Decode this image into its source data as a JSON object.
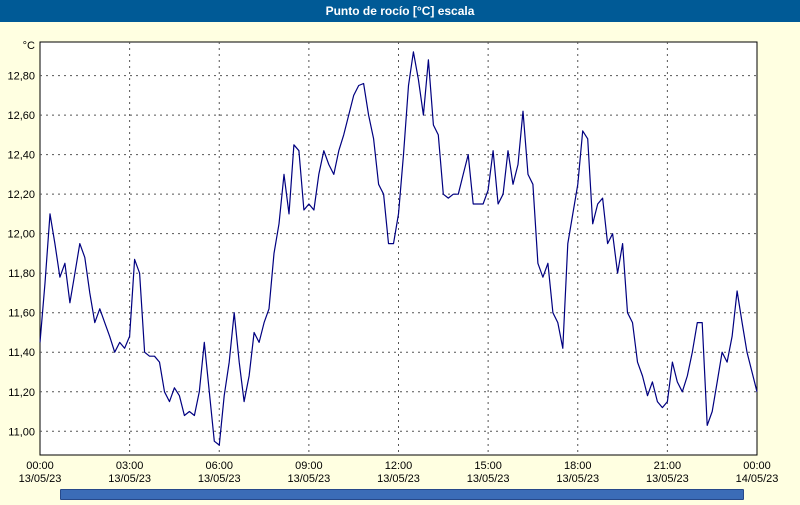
{
  "window": {
    "title": "Punto de rocío [°C] escala",
    "titlebar_color": "#005a96",
    "background_color": "#ffffe1"
  },
  "footer": {
    "scrollbar_color": "#3b6cb7"
  },
  "chart_data": {
    "type": "line",
    "title": "Punto de rocío [°C] escala",
    "unit_label": "°C",
    "line_color": "#000080",
    "grid": true,
    "grid_style": "dashed",
    "plot_background": "#ffffff",
    "ylim": [
      10.88,
      12.97
    ],
    "x_range_minutes": [
      0,
      1440
    ],
    "sample_interval_minutes": 10,
    "y_ticks": [
      {
        "value": 12.8,
        "label": "12,80"
      },
      {
        "value": 12.6,
        "label": "12,60"
      },
      {
        "value": 12.4,
        "label": "12,40"
      },
      {
        "value": 12.2,
        "label": "12,20"
      },
      {
        "value": 12.0,
        "label": "12,00"
      },
      {
        "value": 11.8,
        "label": "11,80"
      },
      {
        "value": 11.6,
        "label": "11,60"
      },
      {
        "value": 11.4,
        "label": "11,40"
      },
      {
        "value": 11.2,
        "label": "11,20"
      },
      {
        "value": 11.0,
        "label": "11,00"
      }
    ],
    "x_ticks": [
      {
        "minutes": 0,
        "time": "00:00",
        "date": "13/05/23"
      },
      {
        "minutes": 180,
        "time": "03:00",
        "date": "13/05/23"
      },
      {
        "minutes": 360,
        "time": "06:00",
        "date": "13/05/23"
      },
      {
        "minutes": 540,
        "time": "09:00",
        "date": "13/05/23"
      },
      {
        "minutes": 720,
        "time": "12:00",
        "date": "13/05/23"
      },
      {
        "minutes": 900,
        "time": "15:00",
        "date": "13/05/23"
      },
      {
        "minutes": 1080,
        "time": "18:00",
        "date": "13/05/23"
      },
      {
        "minutes": 1260,
        "time": "21:00",
        "date": "13/05/23"
      },
      {
        "minutes": 1440,
        "time": "00:00",
        "date": "14/05/23"
      }
    ],
    "values": [
      11.45,
      11.75,
      12.1,
      11.95,
      11.78,
      11.85,
      11.65,
      11.8,
      11.95,
      11.88,
      11.7,
      11.55,
      11.62,
      11.55,
      11.48,
      11.4,
      11.45,
      11.42,
      11.48,
      11.87,
      11.8,
      11.4,
      11.38,
      11.38,
      11.35,
      11.2,
      11.15,
      11.22,
      11.18,
      11.08,
      11.1,
      11.08,
      11.2,
      11.45,
      11.2,
      10.95,
      10.93,
      11.18,
      11.35,
      11.6,
      11.35,
      11.15,
      11.28,
      11.5,
      11.45,
      11.55,
      11.62,
      11.9,
      12.05,
      12.3,
      12.1,
      12.45,
      12.42,
      12.12,
      12.15,
      12.12,
      12.3,
      12.42,
      12.35,
      12.3,
      12.42,
      12.5,
      12.6,
      12.7,
      12.75,
      12.76,
      12.6,
      12.48,
      12.25,
      12.2,
      11.95,
      11.95,
      12.1,
      12.4,
      12.75,
      12.92,
      12.78,
      12.6,
      12.88,
      12.55,
      12.5,
      12.2,
      12.18,
      12.2,
      12.2,
      12.3,
      12.4,
      12.15,
      12.15,
      12.15,
      12.22,
      12.42,
      12.15,
      12.2,
      12.42,
      12.25,
      12.35,
      12.62,
      12.3,
      12.25,
      11.85,
      11.78,
      11.85,
      11.6,
      11.55,
      11.42,
      11.95,
      12.1,
      12.25,
      12.52,
      12.48,
      12.05,
      12.15,
      12.18,
      11.95,
      12.0,
      11.8,
      11.95,
      11.6,
      11.55,
      11.35,
      11.28,
      11.18,
      11.25,
      11.15,
      11.12,
      11.15,
      11.35,
      11.25,
      11.2,
      11.28,
      11.4,
      11.55,
      11.55,
      11.03,
      11.1,
      11.25,
      11.4,
      11.35,
      11.48,
      11.71,
      11.55,
      11.4,
      11.3,
      11.2
    ]
  }
}
